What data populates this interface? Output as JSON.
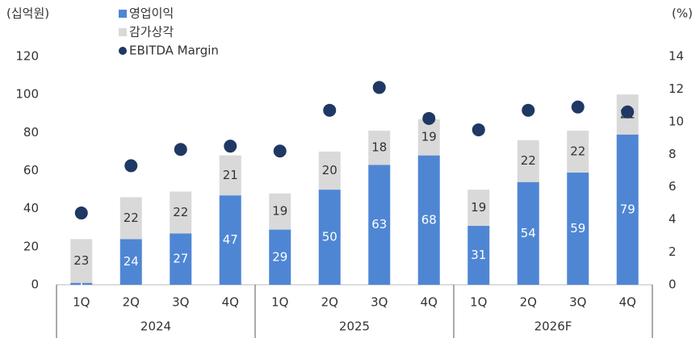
{
  "chart_data": {
    "type": "bar",
    "stacked": true,
    "y_unit": "(십억원)",
    "y2_unit": "(%)",
    "categories": [
      "1Q",
      "2Q",
      "3Q",
      "4Q",
      "1Q",
      "2Q",
      "3Q",
      "4Q",
      "1Q",
      "2Q",
      "3Q",
      "4Q"
    ],
    "x_groups": [
      "2024",
      "2025",
      "2026F"
    ],
    "series": [
      {
        "name": "영업이익",
        "type": "bar",
        "color": "#4f86d4",
        "label_color": "#ffffff",
        "values": [
          1,
          24,
          27,
          47,
          29,
          50,
          63,
          68,
          31,
          54,
          59,
          79
        ]
      },
      {
        "name": "감가상각",
        "type": "bar",
        "color": "#d9d9d9",
        "label_color": "#333333",
        "values": [
          23,
          22,
          22,
          21,
          19,
          20,
          18,
          19,
          19,
          22,
          22,
          21
        ]
      },
      {
        "name": "EBITDA Margin",
        "type": "scatter",
        "axis": "y2",
        "color": "#1f3864",
        "values": [
          4.4,
          7.3,
          8.3,
          8.5,
          8.2,
          10.7,
          12.1,
          10.2,
          9.5,
          10.7,
          10.9,
          10.6
        ]
      }
    ],
    "ylim": [
      0,
      120
    ],
    "yticks": [
      0,
      20,
      40,
      60,
      80,
      100,
      120
    ],
    "y2lim": [
      0,
      14
    ],
    "y2ticks": [
      0,
      2,
      4,
      6,
      8,
      10,
      12,
      14
    ],
    "grid": false
  }
}
